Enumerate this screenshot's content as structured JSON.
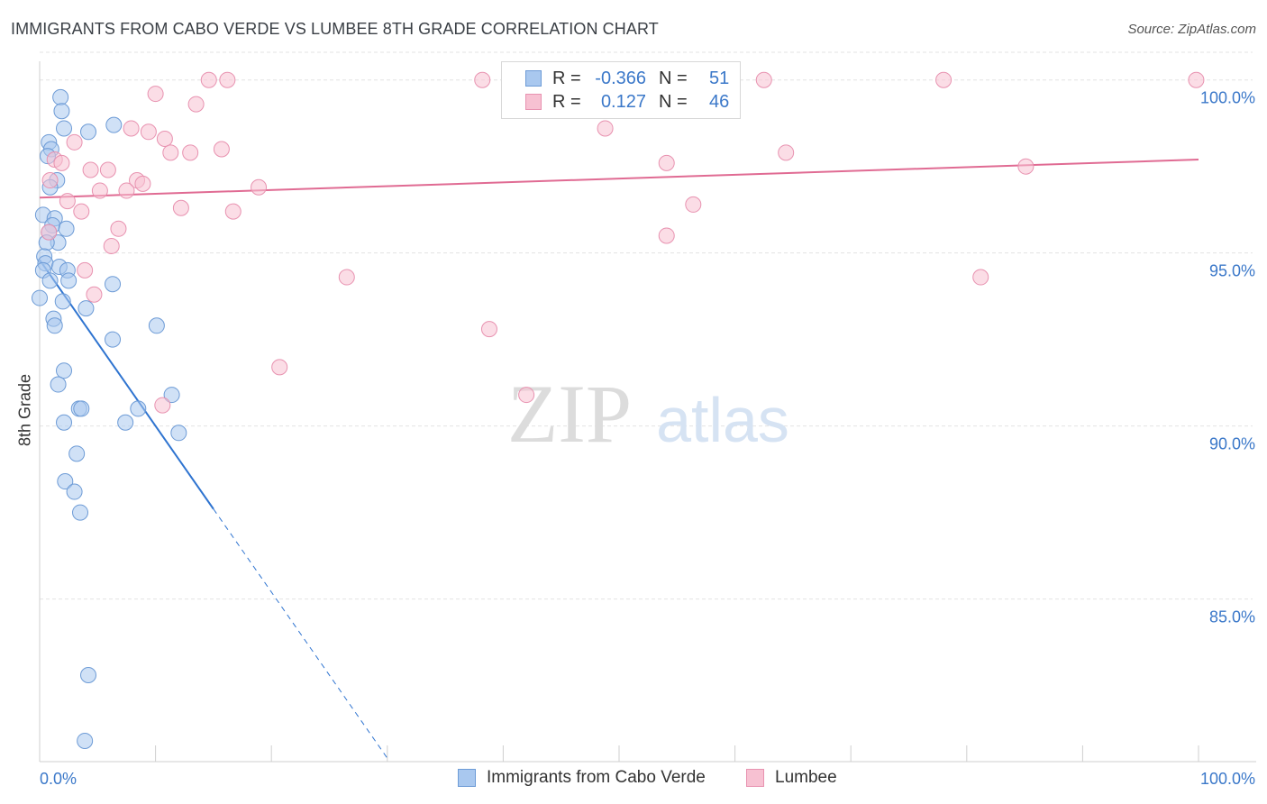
{
  "title": "IMMIGRANTS FROM CABO VERDE VS LUMBEE 8TH GRADE CORRELATION CHART",
  "source": "Source: ZipAtlas.com",
  "watermark": {
    "zip": "ZIP",
    "atlas": "atlas"
  },
  "legend_top": {
    "r_label": "R =",
    "n_label": "N =",
    "rows": [
      {
        "r": "-0.366",
        "n": "51"
      },
      {
        "r": "0.127",
        "n": "46"
      }
    ]
  },
  "legend_bottom": [
    "Immigrants from Cabo Verde",
    "Lumbee"
  ],
  "colors": {
    "blue_fill": "#a9c8ef",
    "blue_stroke": "#6d9bd6",
    "blue_line": "#2f74d0",
    "pink_fill": "#f7c1d2",
    "pink_stroke": "#e892b0",
    "pink_line": "#e06b93",
    "tick_label": "#3b78c9",
    "grid": "#e3e3e3"
  },
  "chart_data": {
    "type": "scatter",
    "title": "IMMIGRANTS FROM CABO VERDE VS LUMBEE 8TH GRADE CORRELATION CHART",
    "xlabel": "",
    "ylabel": "8th Grade",
    "xlim": [
      0,
      100
    ],
    "ylim": [
      80.3,
      100.8
    ],
    "x_tick_labels": [
      "0.0%",
      "100.0%"
    ],
    "y_ticks": [
      85,
      90,
      95,
      100
    ],
    "y_tick_labels": [
      "85.0%",
      "90.0%",
      "95.0%",
      "100.0%"
    ],
    "grid": true,
    "legend_position": "top-center",
    "series": [
      {
        "name": "Immigrants from Cabo Verde",
        "color": "#a9c8ef",
        "r": -0.366,
        "n": 51,
        "trend": {
          "x": [
            0,
            15
          ],
          "y": [
            94.8,
            87.6
          ],
          "dashed_to": [
            30,
            80.4
          ]
        },
        "points": [
          [
            1.8,
            99.5
          ],
          [
            1.9,
            99.1
          ],
          [
            2.1,
            98.6
          ],
          [
            4.2,
            98.5
          ],
          [
            6.4,
            98.7
          ],
          [
            0.8,
            98.2
          ],
          [
            1.0,
            98.0
          ],
          [
            0.7,
            97.8
          ],
          [
            1.5,
            97.1
          ],
          [
            0.9,
            96.9
          ],
          [
            0.3,
            96.1
          ],
          [
            1.3,
            96.0
          ],
          [
            1.1,
            95.8
          ],
          [
            2.3,
            95.7
          ],
          [
            0.8,
            95.6
          ],
          [
            1.6,
            95.3
          ],
          [
            0.6,
            95.3
          ],
          [
            0.4,
            94.9
          ],
          [
            0.5,
            94.7
          ],
          [
            0.3,
            94.5
          ],
          [
            1.7,
            94.6
          ],
          [
            2.4,
            94.5
          ],
          [
            0.9,
            94.2
          ],
          [
            2.5,
            94.2
          ],
          [
            6.3,
            94.1
          ],
          [
            0.0,
            93.7
          ],
          [
            2.0,
            93.6
          ],
          [
            4.0,
            93.4
          ],
          [
            1.2,
            93.1
          ],
          [
            1.3,
            92.9
          ],
          [
            10.1,
            92.9
          ],
          [
            6.3,
            92.5
          ],
          [
            2.1,
            91.6
          ],
          [
            1.6,
            91.2
          ],
          [
            11.4,
            90.9
          ],
          [
            3.4,
            90.5
          ],
          [
            3.6,
            90.5
          ],
          [
            8.5,
            90.5
          ],
          [
            2.1,
            90.1
          ],
          [
            7.4,
            90.1
          ],
          [
            12.0,
            89.8
          ],
          [
            3.2,
            89.2
          ],
          [
            2.2,
            88.4
          ],
          [
            3.0,
            88.1
          ],
          [
            3.5,
            87.5
          ],
          [
            4.2,
            82.8
          ],
          [
            3.9,
            80.9
          ]
        ]
      },
      {
        "name": "Lumbee",
        "color": "#f7c1d2",
        "r": 0.127,
        "n": 46,
        "trend": {
          "x": [
            0,
            100
          ],
          "y": [
            96.6,
            97.7
          ]
        },
        "points": [
          [
            14.6,
            100.0
          ],
          [
            16.2,
            100.0
          ],
          [
            38.2,
            100.0
          ],
          [
            62.5,
            100.0
          ],
          [
            78.0,
            100.0
          ],
          [
            99.8,
            100.0
          ],
          [
            10.0,
            99.6
          ],
          [
            13.5,
            99.3
          ],
          [
            7.9,
            98.6
          ],
          [
            9.4,
            98.5
          ],
          [
            10.8,
            98.3
          ],
          [
            3.0,
            98.2
          ],
          [
            48.8,
            98.6
          ],
          [
            15.7,
            98.0
          ],
          [
            11.3,
            97.9
          ],
          [
            13.0,
            97.9
          ],
          [
            64.4,
            97.9
          ],
          [
            1.3,
            97.7
          ],
          [
            1.9,
            97.6
          ],
          [
            54.1,
            97.6
          ],
          [
            85.1,
            97.5
          ],
          [
            4.4,
            97.4
          ],
          [
            5.9,
            97.4
          ],
          [
            0.9,
            97.1
          ],
          [
            8.4,
            97.1
          ],
          [
            8.9,
            97.0
          ],
          [
            18.9,
            96.9
          ],
          [
            5.2,
            96.8
          ],
          [
            7.5,
            96.8
          ],
          [
            2.4,
            96.5
          ],
          [
            12.2,
            96.3
          ],
          [
            16.7,
            96.2
          ],
          [
            3.6,
            96.2
          ],
          [
            56.4,
            96.4
          ],
          [
            0.8,
            95.6
          ],
          [
            6.8,
            95.7
          ],
          [
            6.2,
            95.2
          ],
          [
            54.1,
            95.5
          ],
          [
            3.9,
            94.5
          ],
          [
            26.5,
            94.3
          ],
          [
            81.2,
            94.3
          ],
          [
            4.7,
            93.8
          ],
          [
            38.8,
            92.8
          ],
          [
            20.7,
            91.7
          ],
          [
            42.0,
            90.9
          ],
          [
            10.6,
            90.6
          ]
        ]
      }
    ]
  }
}
